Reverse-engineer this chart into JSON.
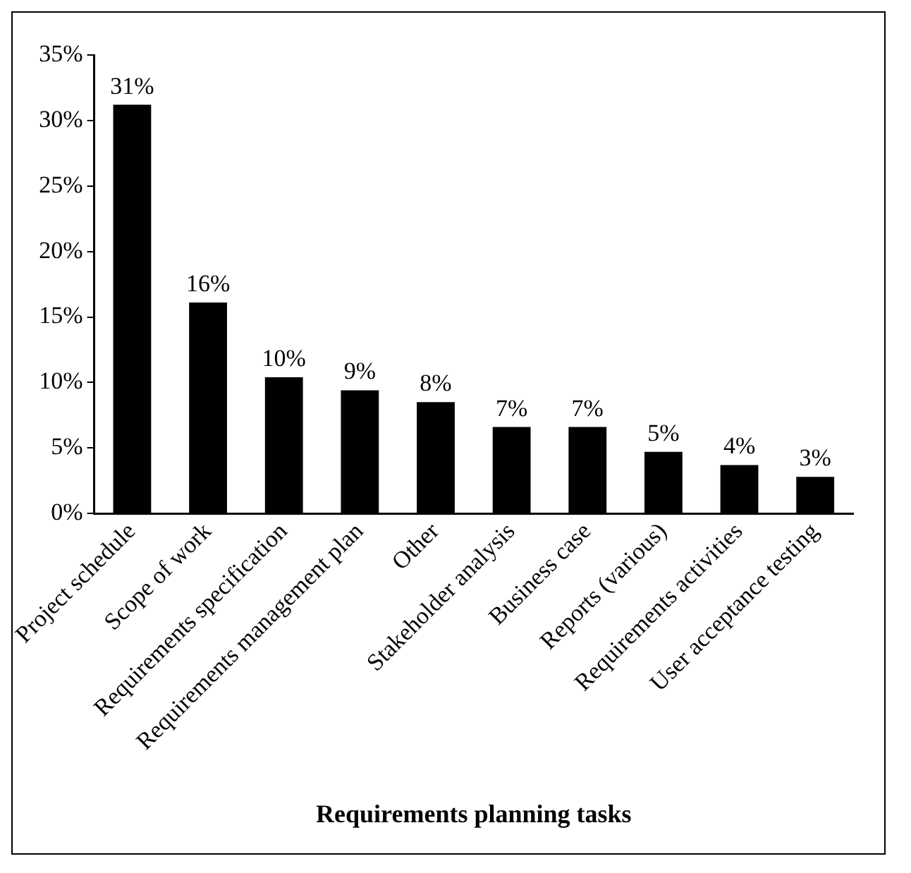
{
  "chart_data": {
    "type": "bar",
    "xlabel": "Requirements planning tasks",
    "categories": [
      "Project schedule",
      "Scope of work",
      "Requirements specification",
      "Requirements management plan",
      "Other",
      "Stakeholder analysis",
      "Business case",
      "Reports (various)",
      "Requirements activities",
      "User acceptance testing"
    ],
    "values": [
      31.2,
      16.1,
      10.4,
      9.4,
      8.5,
      6.6,
      6.6,
      4.7,
      3.7,
      2.8
    ],
    "value_labels": [
      "31%",
      "16%",
      "10%",
      "9%",
      "8%",
      "7%",
      "7%",
      "5%",
      "4%",
      "3%"
    ],
    "color": "#000000",
    "ylim": [
      0,
      35
    ],
    "yticks": [
      {
        "value": 0,
        "label": "0%"
      },
      {
        "value": 5,
        "label": "5%"
      },
      {
        "value": 10,
        "label": "10%"
      },
      {
        "value": 15,
        "label": "15%"
      },
      {
        "value": 20,
        "label": "20%"
      },
      {
        "value": 25,
        "label": "25%"
      },
      {
        "value": 30,
        "label": "30%"
      },
      {
        "value": 35,
        "label": "35%"
      }
    ],
    "grid": false,
    "legend": false
  }
}
